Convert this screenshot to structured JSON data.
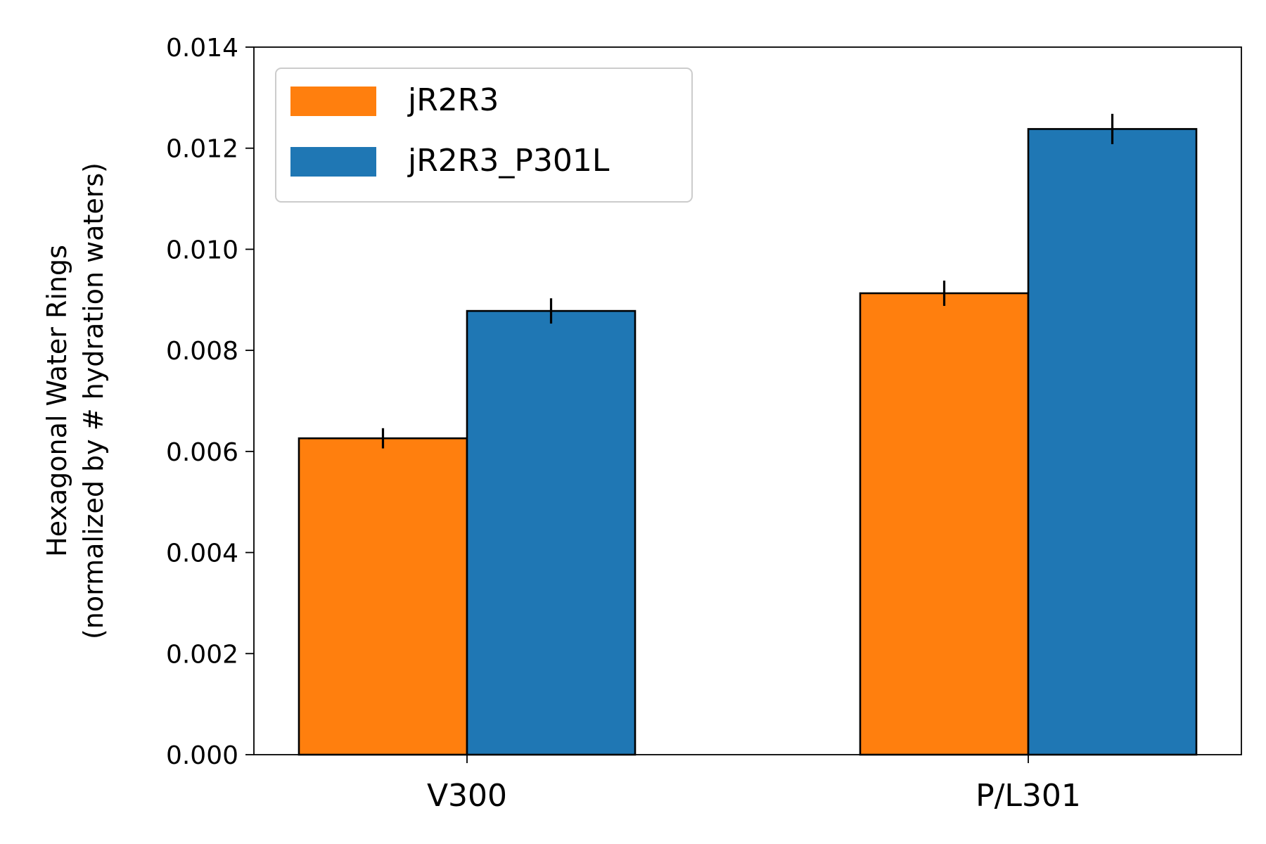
{
  "chart_data": {
    "type": "bar",
    "categories": [
      "V300",
      "P/L301"
    ],
    "series": [
      {
        "name": "jR2R3",
        "color": "#ff7f0e",
        "values": [
          0.00626,
          0.00913
        ],
        "errors": [
          0.0002,
          0.00025
        ]
      },
      {
        "name": "jR2R3_P301L",
        "color": "#1f77b4",
        "values": [
          0.00878,
          0.01238
        ],
        "errors": [
          0.00025,
          0.0003
        ]
      }
    ],
    "title": "",
    "xlabel": "",
    "ylabel_lines": [
      "Hexagonal Water Rings",
      "(normalized by # hydration waters)"
    ],
    "ylim": [
      0,
      0.014
    ],
    "yticks": [
      0,
      0.002,
      0.004,
      0.006,
      0.008,
      0.01,
      0.012,
      0.014
    ],
    "ytick_labels": [
      "0.000",
      "0.002",
      "0.004",
      "0.006",
      "0.008",
      "0.010",
      "0.012",
      "0.014"
    ],
    "grid": false,
    "legend": "top-left",
    "edge_color": "#000000"
  }
}
